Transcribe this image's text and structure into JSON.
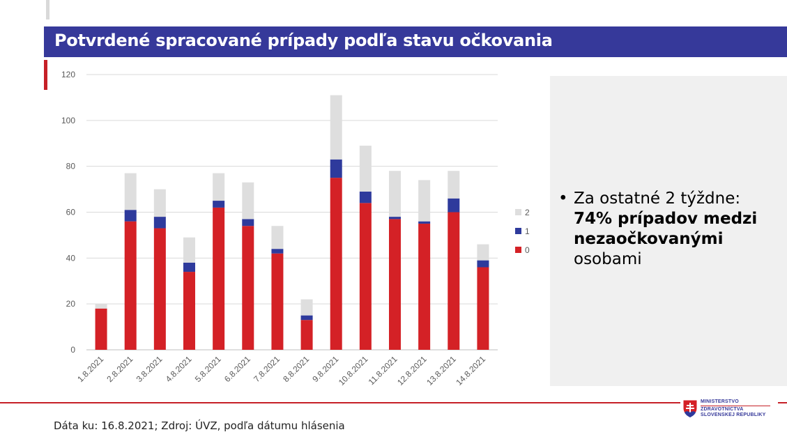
{
  "title": "Potvrdené spracované prípady podľa stavu očkovania",
  "colors": {
    "header": "#36399a",
    "accent_red": "#c62027",
    "series_0": "#d42126",
    "series_1": "#2e3a9c",
    "series_2": "#dedede"
  },
  "chart_data": {
    "type": "bar",
    "stacked": true,
    "categories": [
      "1.8.2021",
      "2.8.2021",
      "3.8.2021",
      "4.8.2021",
      "5.8.2021",
      "6.8.2021",
      "7.8.2021",
      "8.8.2021",
      "9.8.2021",
      "10.8.2021",
      "11.8.2021",
      "12.8.2021",
      "13.8.2021",
      "14.8.2021"
    ],
    "series": [
      {
        "name": "0",
        "color": "#d42126",
        "values": [
          18,
          56,
          53,
          34,
          62,
          54,
          42,
          13,
          75,
          64,
          57,
          55,
          60,
          36
        ]
      },
      {
        "name": "1",
        "color": "#2e3a9c",
        "values": [
          0,
          5,
          5,
          4,
          3,
          3,
          2,
          2,
          8,
          5,
          1,
          1,
          6,
          3
        ]
      },
      {
        "name": "2",
        "color": "#dedede",
        "values": [
          2,
          16,
          12,
          11,
          12,
          16,
          10,
          7,
          28,
          20,
          20,
          18,
          12,
          7
        ]
      }
    ],
    "ylim": [
      0,
      120
    ],
    "yticks": [
      0,
      20,
      40,
      60,
      80,
      100,
      120
    ],
    "grid": true,
    "legend": "right",
    "xlabel": "",
    "ylabel": ""
  },
  "side_panel": {
    "bullet": "•",
    "line1": "Za ostatné 2 týždne:",
    "strong": "74% prípadov medzi nezaočkovanými",
    "line3": "osobami"
  },
  "source": "Dáta ku: 16.8.2021; Zdroj: ÚVZ, podľa dátumu hlásenia",
  "logo": {
    "line1": "MINISTERSTVO",
    "line2": "ZDRAVOTNÍCTVA",
    "line3": "SLOVENSKEJ REPUBLIKY"
  }
}
